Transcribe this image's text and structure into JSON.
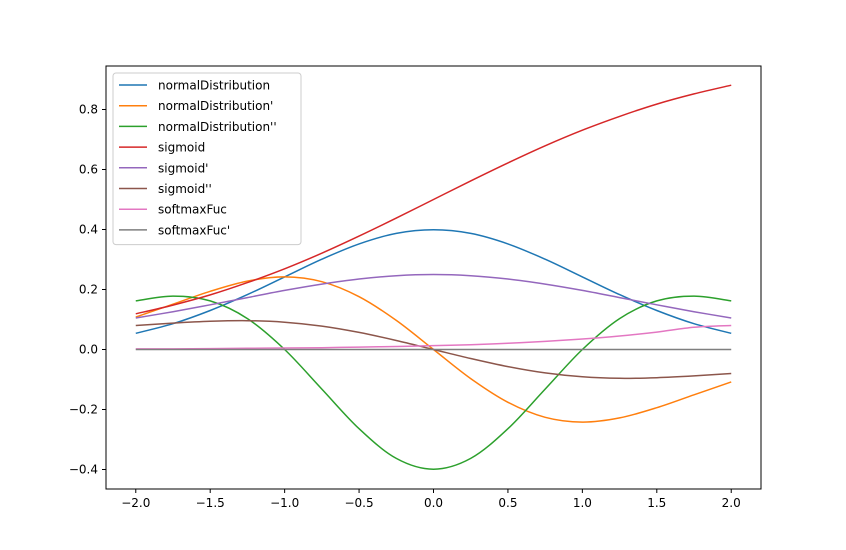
{
  "chart_data": {
    "type": "line",
    "title": "",
    "xlabel": "",
    "ylabel": "",
    "xlim": [
      -2.2,
      2.2
    ],
    "ylim": [
      -0.465,
      0.945
    ],
    "xticks": [
      -2.0,
      -1.5,
      -1.0,
      -0.5,
      0.0,
      0.5,
      1.0,
      1.5,
      2.0
    ],
    "xtick_labels": [
      "−2.0",
      "−1.5",
      "−1.0",
      "−0.5",
      "0.0",
      "0.5",
      "1.0",
      "1.5",
      "2.0"
    ],
    "yticks": [
      -0.4,
      -0.2,
      0.0,
      0.2,
      0.4,
      0.6,
      0.8
    ],
    "ytick_labels": [
      "−0.4",
      "−0.2",
      "0.0",
      "0.2",
      "0.4",
      "0.6",
      "0.8"
    ],
    "grid": false,
    "legend_position": "upper-left",
    "x": [
      -2.0,
      -1.75,
      -1.5,
      -1.25,
      -1.0,
      -0.75,
      -0.5,
      -0.25,
      0.0,
      0.25,
      0.5,
      0.75,
      1.0,
      1.25,
      1.5,
      1.75,
      2.0
    ],
    "series": [
      {
        "name": "normalDistribution",
        "color": "#1f77b4",
        "values": [
          0.054,
          0.086,
          0.13,
          0.183,
          0.242,
          0.301,
          0.352,
          0.387,
          0.399,
          0.387,
          0.352,
          0.301,
          0.242,
          0.183,
          0.13,
          0.086,
          0.054
        ]
      },
      {
        "name": "normalDistribution'",
        "color": "#ff7f0e",
        "values": [
          0.108,
          0.151,
          0.194,
          0.228,
          0.242,
          0.226,
          0.176,
          0.097,
          0.0,
          -0.097,
          -0.176,
          -0.226,
          -0.242,
          -0.228,
          -0.194,
          -0.151,
          -0.108
        ]
      },
      {
        "name": "normalDistribution''",
        "color": "#2ca02c",
        "values": [
          0.162,
          0.178,
          0.162,
          0.103,
          0.0,
          -0.132,
          -0.264,
          -0.363,
          -0.399,
          -0.363,
          -0.264,
          -0.132,
          0.0,
          0.103,
          0.162,
          0.178,
          0.162
        ]
      },
      {
        "name": "sigmoid",
        "color": "#d62728",
        "values": [
          0.119,
          0.148,
          0.182,
          0.223,
          0.269,
          0.321,
          0.378,
          0.438,
          0.5,
          0.562,
          0.622,
          0.679,
          0.731,
          0.777,
          0.818,
          0.852,
          0.881
        ]
      },
      {
        "name": "sigmoid'",
        "color": "#9467bd",
        "values": [
          0.105,
          0.126,
          0.149,
          0.173,
          0.197,
          0.218,
          0.235,
          0.246,
          0.25,
          0.246,
          0.235,
          0.218,
          0.197,
          0.173,
          0.149,
          0.126,
          0.105
        ]
      },
      {
        "name": "sigmoid''",
        "color": "#8c564b",
        "values": [
          0.08,
          0.088,
          0.094,
          0.096,
          0.091,
          0.078,
          0.057,
          0.03,
          0.0,
          -0.03,
          -0.057,
          -0.078,
          -0.091,
          -0.096,
          -0.094,
          -0.088,
          -0.08
        ]
      },
      {
        "name": "softmaxFuc",
        "color": "#e377c2",
        "values": [
          0.002,
          0.002,
          0.003,
          0.004,
          0.005,
          0.006,
          0.008,
          0.01,
          0.013,
          0.016,
          0.021,
          0.027,
          0.035,
          0.045,
          0.058,
          0.074,
          0.08
        ]
      },
      {
        "name": "softmaxFuc'",
        "color": "#7f7f7f",
        "values": [
          0.0,
          0.0,
          0.0,
          0.0,
          0.0,
          0.0,
          0.0,
          0.0,
          0.0,
          0.0,
          0.0,
          0.0,
          0.0,
          0.0,
          0.0,
          0.0,
          0.0
        ]
      }
    ]
  }
}
